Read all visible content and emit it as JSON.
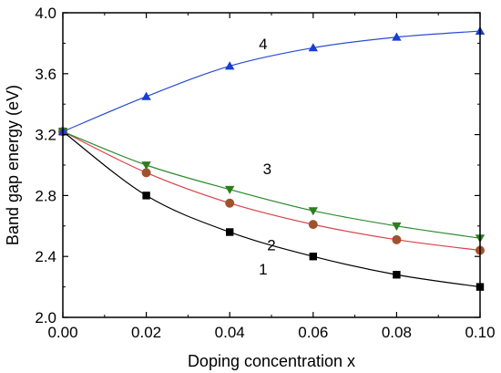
{
  "chart_data": {
    "type": "line",
    "title": "",
    "xlabel": "Doping concentration x",
    "ylabel": "Band gap energy (eV)",
    "xlim": [
      0.0,
      0.1
    ],
    "ylim": [
      2.0,
      4.0
    ],
    "xticks": [
      "0.00",
      "0.02",
      "0.04",
      "0.06",
      "0.08",
      "0.10"
    ],
    "yticks": [
      "2.0",
      "2.4",
      "2.8",
      "3.2",
      "3.6",
      "4.0"
    ],
    "x": [
      0.0,
      0.02,
      0.04,
      0.06,
      0.08,
      0.1
    ],
    "grid": false,
    "series": [
      {
        "name": "1",
        "values": [
          3.22,
          2.8,
          2.56,
          2.4,
          2.28,
          2.2
        ],
        "line_color": "#000000",
        "marker": "square",
        "marker_color": "#000000"
      },
      {
        "name": "2",
        "values": [
          3.22,
          2.95,
          2.75,
          2.61,
          2.51,
          2.44
        ],
        "line_color": "#d9434b",
        "marker": "circle",
        "marker_color": "#a0522d"
      },
      {
        "name": "3",
        "values": [
          3.22,
          3.0,
          2.84,
          2.7,
          2.6,
          2.52
        ],
        "line_color": "#2e8b2e",
        "marker": "triangle-down",
        "marker_color": "#2e7d1f"
      },
      {
        "name": "4",
        "values": [
          3.22,
          3.45,
          3.65,
          3.77,
          3.84,
          3.88
        ],
        "line_color": "#2a4bd7",
        "marker": "triangle-up",
        "marker_color": "#1a3ed1"
      }
    ]
  }
}
